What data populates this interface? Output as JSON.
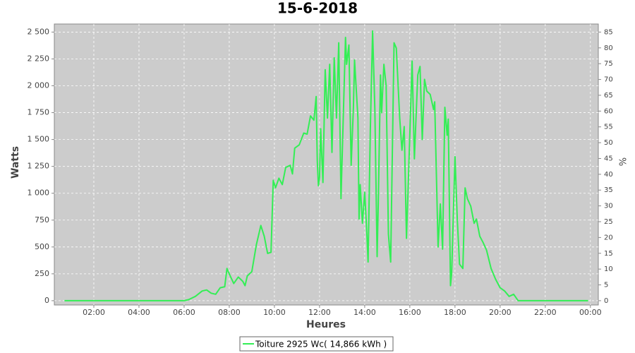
{
  "chart_data": {
    "type": "line",
    "title": "15-6-2018",
    "x_label": "Heures",
    "y_label": "Watts",
    "y2_label": "%",
    "xlim": [
      0.25,
      24.35
    ],
    "xticks": [
      {
        "value": 2,
        "label": "02:00"
      },
      {
        "value": 4,
        "label": "04:00"
      },
      {
        "value": 6,
        "label": "06:00"
      },
      {
        "value": 8,
        "label": "08:00"
      },
      {
        "value": 10,
        "label": "10:00"
      },
      {
        "value": 12,
        "label": "12:00"
      },
      {
        "value": 14,
        "label": "14:00"
      },
      {
        "value": 16,
        "label": "16:00"
      },
      {
        "value": 18,
        "label": "18:00"
      },
      {
        "value": 20,
        "label": "20:00"
      },
      {
        "value": 22,
        "label": "22:00"
      },
      {
        "value": 24,
        "label": "00:00"
      }
    ],
    "ylim": [
      -40,
      2575
    ],
    "yticks": [
      0,
      250,
      500,
      750,
      {
        "value": 1000,
        "label": "1 000"
      },
      {
        "value": 1250,
        "label": "1 250"
      },
      {
        "value": 1500,
        "label": "1 500"
      },
      {
        "value": 1750,
        "label": "1 750"
      },
      {
        "value": 2000,
        "label": "2 000"
      },
      {
        "value": 2250,
        "label": "2 250"
      },
      {
        "value": 2500,
        "label": "2 500"
      }
    ],
    "y2lim": [
      -1.36,
      87.55
    ],
    "y2ticks": [
      0,
      5,
      10,
      15,
      20,
      25,
      30,
      35,
      40,
      45,
      50,
      55,
      60,
      65,
      70,
      75,
      80,
      85
    ],
    "grid": true,
    "legend": "bottom",
    "x": [
      0.7,
      2,
      4,
      6,
      6.2,
      6.5,
      6.8,
      7,
      7.2,
      7.4,
      7.6,
      7.8,
      7.9,
      8,
      8.2,
      8.4,
      8.6,
      8.7,
      8.8,
      9,
      9.2,
      9.4,
      9.55,
      9.7,
      9.85,
      9.95,
      10.05,
      10.2,
      10.35,
      10.5,
      10.7,
      10.8,
      10.9,
      11.1,
      11.3,
      11.45,
      11.6,
      11.75,
      11.85,
      11.9,
      11.95,
      12,
      12.05,
      12.15,
      12.25,
      12.35,
      12.45,
      12.55,
      12.65,
      12.75,
      12.85,
      12.95,
      13.05,
      13.15,
      13.2,
      13.3,
      13.4,
      13.5,
      13.55,
      13.7,
      13.75,
      13.8,
      13.9,
      14,
      14.1,
      14.15,
      14.25,
      14.35,
      14.45,
      14.55,
      14.6,
      14.7,
      14.75,
      14.85,
      14.95,
      15.05,
      15.15,
      15.3,
      15.4,
      15.55,
      15.65,
      15.75,
      15.85,
      15.95,
      16.1,
      16.2,
      16.35,
      16.45,
      16.55,
      16.65,
      16.75,
      16.9,
      17.05,
      17.1,
      17.25,
      17.35,
      17.45,
      17.55,
      17.65,
      17.7,
      17.8,
      17.85,
      18,
      18.1,
      18.2,
      18.35,
      18.45,
      18.55,
      18.7,
      18.85,
      18.95,
      19.1,
      19.25,
      19.4,
      19.6,
      19.8,
      20,
      20.2,
      20.4,
      20.6,
      20.8,
      21,
      22,
      23,
      23.9
    ],
    "series": [
      {
        "name": "Toiture 2925 Wc( 14,866 kWh )",
        "color": "#33ee55",
        "values": [
          0,
          0,
          0,
          0,
          10,
          40,
          90,
          100,
          70,
          60,
          120,
          130,
          300,
          250,
          160,
          220,
          180,
          140,
          230,
          270,
          520,
          700,
          600,
          440,
          450,
          1120,
          1050,
          1140,
          1080,
          1240,
          1260,
          1180,
          1420,
          1450,
          1560,
          1550,
          1720,
          1680,
          1900,
          1300,
          1070,
          1150,
          1600,
          1100,
          2150,
          1700,
          2200,
          1380,
          2260,
          1700,
          2400,
          950,
          1700,
          2450,
          2200,
          2380,
          1260,
          1800,
          2240,
          1700,
          760,
          1080,
          720,
          1010,
          600,
          360,
          1600,
          2510,
          1780,
          410,
          900,
          2100,
          1750,
          2200,
          2000,
          620,
          360,
          2400,
          2350,
          1700,
          1400,
          1620,
          580,
          1220,
          2230,
          1320,
          2100,
          2180,
          1500,
          2060,
          1950,
          1920,
          1780,
          1850,
          500,
          900,
          480,
          1800,
          1540,
          1690,
          140,
          250,
          1340,
          760,
          340,
          300,
          1050,
          950,
          880,
          720,
          760,
          600,
          540,
          470,
          300,
          200,
          120,
          90,
          40,
          60,
          0,
          0,
          0,
          0,
          0
        ]
      }
    ]
  }
}
